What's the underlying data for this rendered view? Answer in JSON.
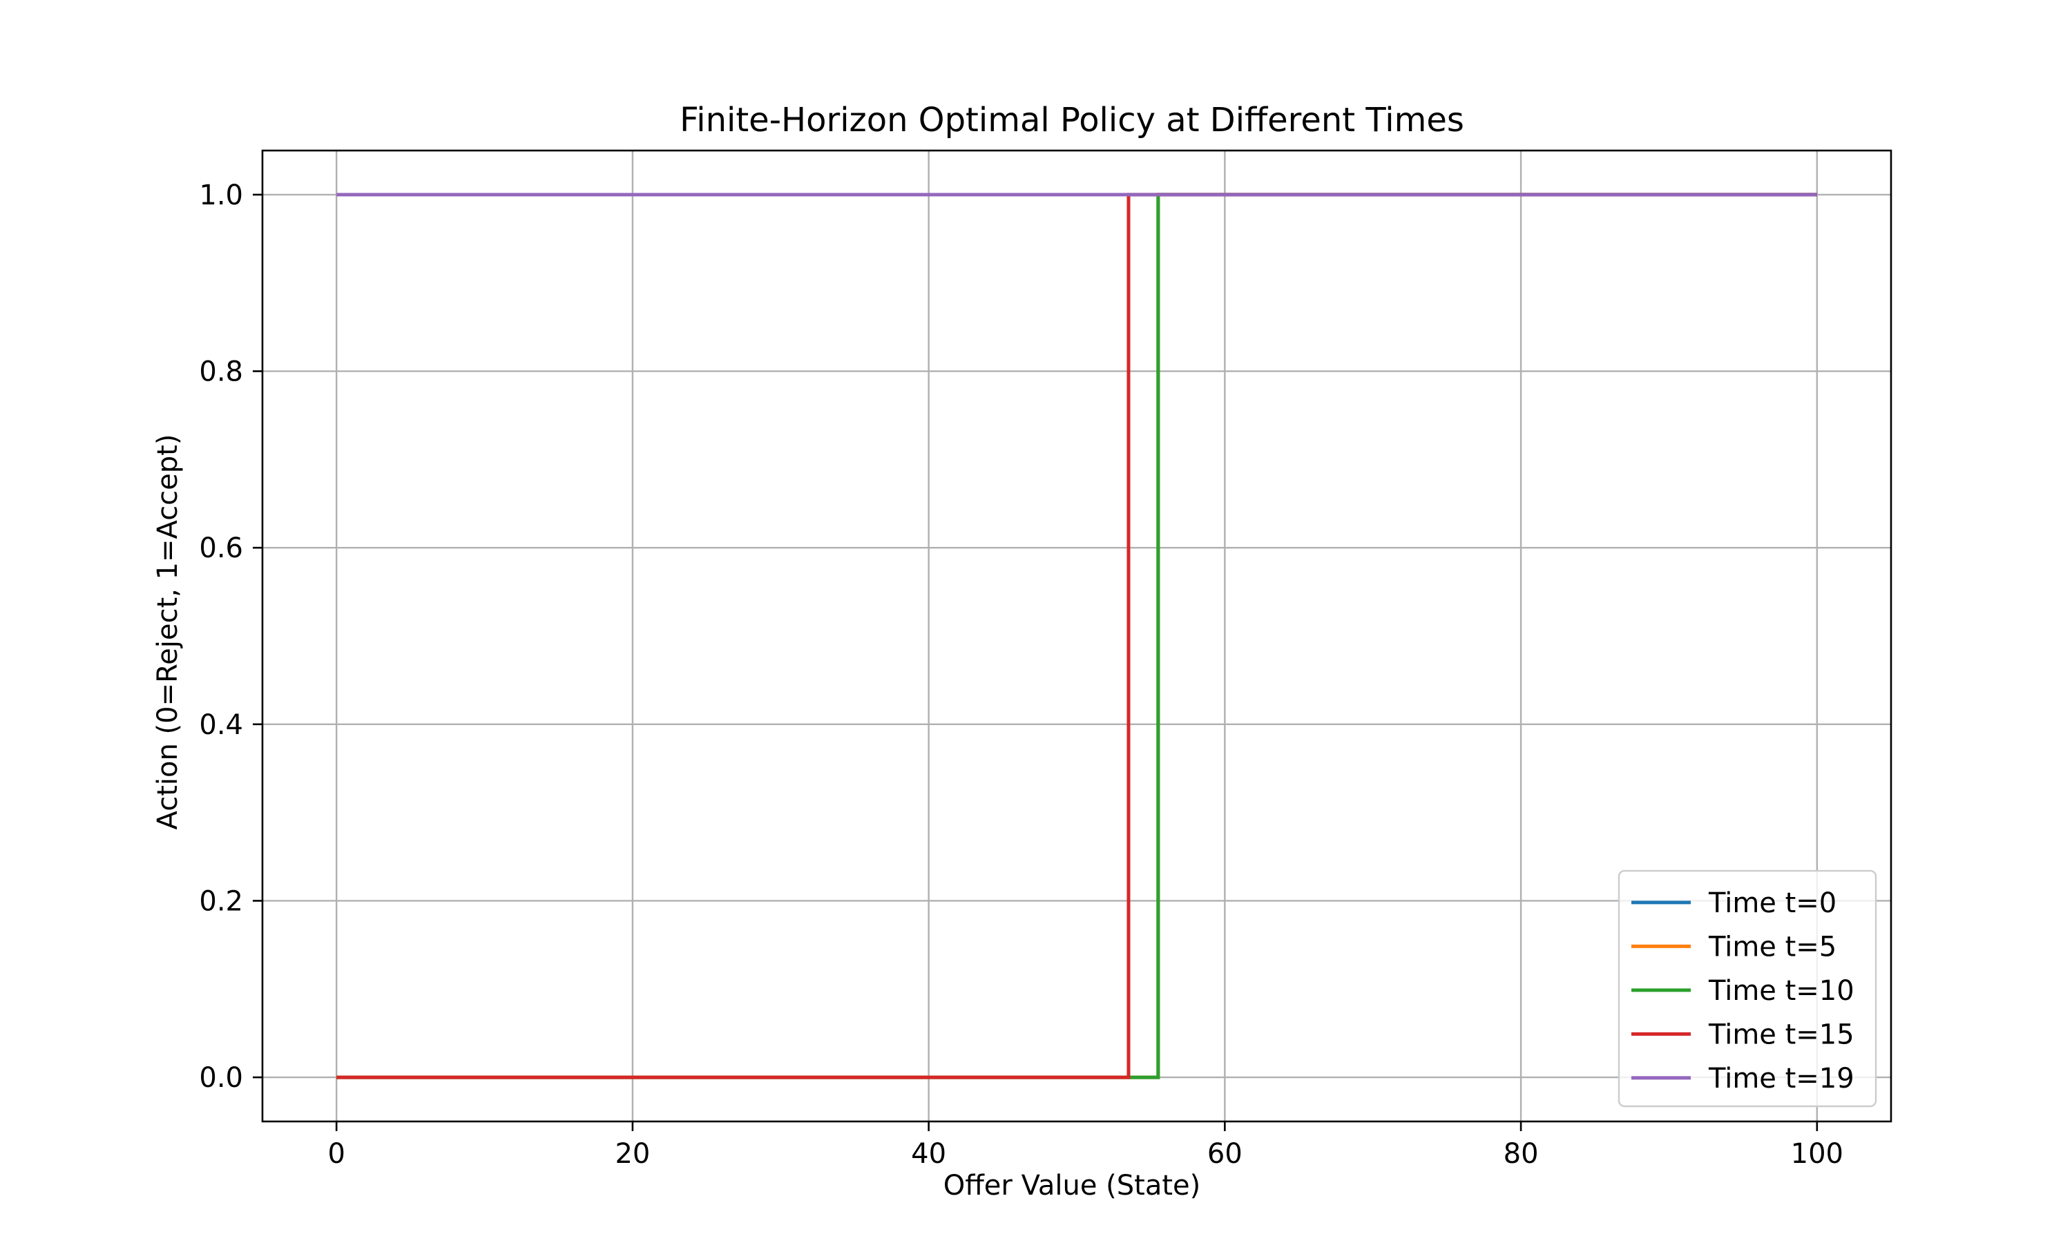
{
  "chart_data": {
    "type": "line",
    "title": "Finite-Horizon Optimal Policy at Different Times",
    "xlabel": "Offer Value (State)",
    "ylabel": "Action (0=Reject, 1=Accept)",
    "xlim": [
      -5,
      105
    ],
    "ylim": [
      -0.05,
      1.05
    ],
    "xticks": [
      0,
      20,
      40,
      60,
      80,
      100
    ],
    "xtick_labels": [
      "0",
      "20",
      "40",
      "60",
      "80",
      "100"
    ],
    "yticks": [
      0.0,
      0.2,
      0.4,
      0.6,
      0.8,
      1.0
    ],
    "ytick_labels": [
      "0.0",
      "0.2",
      "0.4",
      "0.6",
      "0.8",
      "1.0"
    ],
    "grid": true,
    "legend_position": "lower-right",
    "series": [
      {
        "name": "Time t=0",
        "color": "#1f77b4",
        "x": [
          0,
          55.5,
          55.5,
          100
        ],
        "y": [
          0,
          0,
          1,
          1
        ]
      },
      {
        "name": "Time t=5",
        "color": "#ff7f0e",
        "x": [
          0,
          55.5,
          55.5,
          100
        ],
        "y": [
          0,
          0,
          1,
          1
        ]
      },
      {
        "name": "Time t=10",
        "color": "#2ca02c",
        "x": [
          0,
          55.5,
          55.5,
          100
        ],
        "y": [
          0,
          0,
          1,
          1
        ]
      },
      {
        "name": "Time t=15",
        "color": "#d62728",
        "x": [
          0,
          53.5,
          53.5,
          100
        ],
        "y": [
          0,
          0,
          1,
          1
        ]
      },
      {
        "name": "Time t=19",
        "color": "#9467bd",
        "x": [
          0,
          100
        ],
        "y": [
          1,
          1
        ]
      }
    ]
  }
}
